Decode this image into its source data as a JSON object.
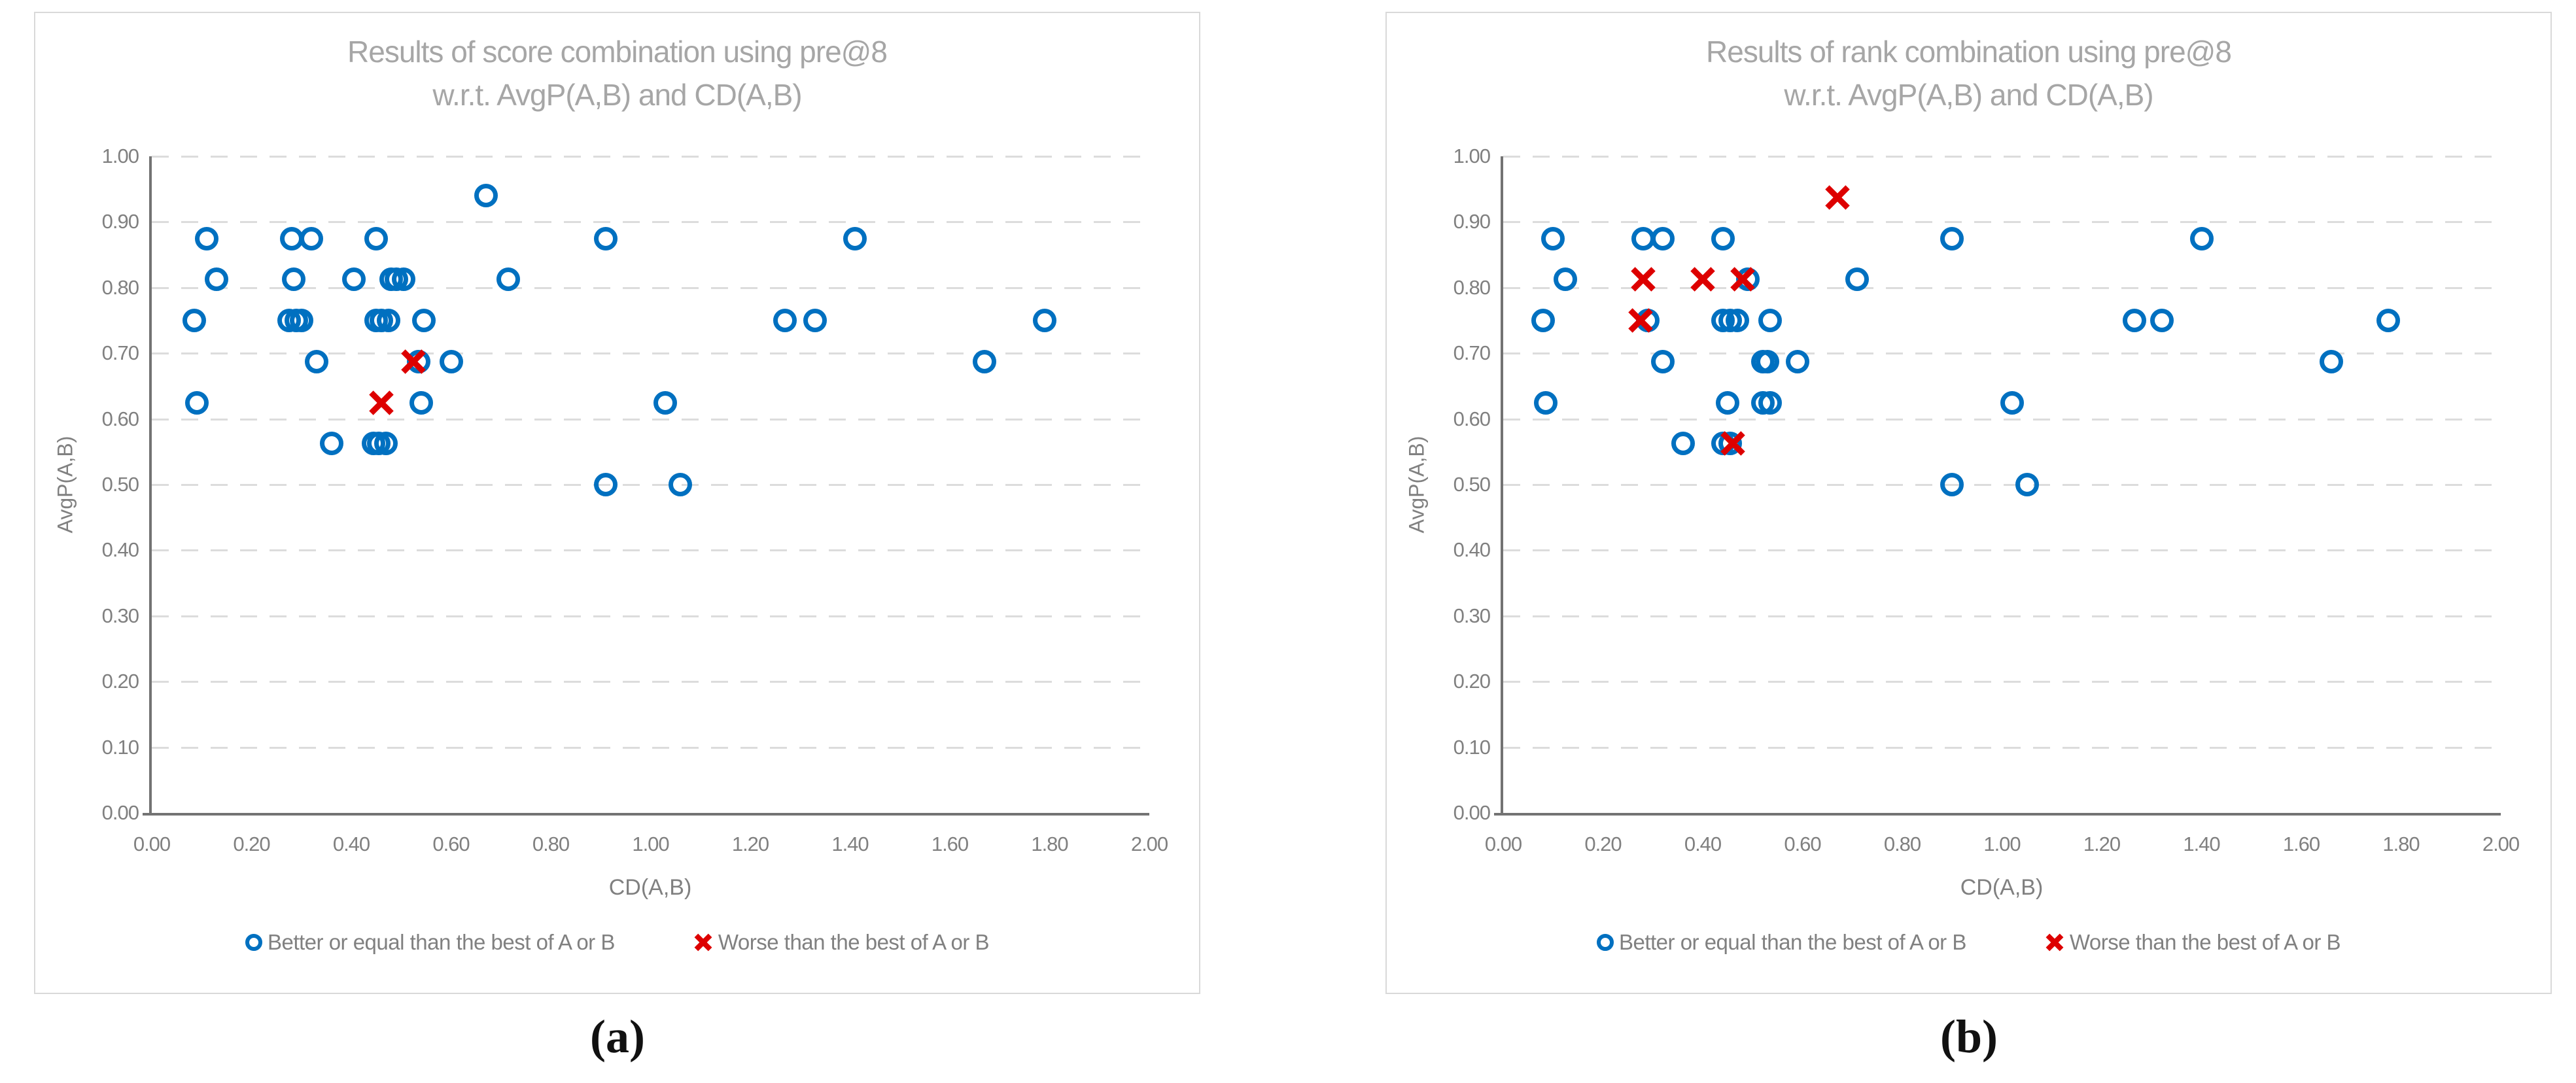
{
  "colors": {
    "circle_series": "#0070C0",
    "x_series": "#DD0000",
    "title_text": "#A6A6A6",
    "axis_text": "#808080",
    "gridline": "#DCDCDC",
    "axis_line": "#737373",
    "panel_border": "#D9D9D9",
    "caption_text": "#111111"
  },
  "captions": {
    "a": "(a)",
    "b": "(b)"
  },
  "charts": [
    {
      "title_line1": "Results of score combination using pre@8",
      "title_line2": "w.r.t. AvgP(A,B) and CD(A,B)",
      "xlabel": "CD(A,B)",
      "ylabel": "AvgP(A,B)",
      "legend": [
        {
          "marker": "circle",
          "label": "Better or equal than the best of A or B"
        },
        {
          "marker": "x",
          "label": "Worse than the best of A or B"
        }
      ],
      "chart_data": {
        "type": "scatter",
        "title": "Results of score combination using pre@8 w.r.t. AvgP(A,B) and CD(A,B)",
        "xlabel": "CD(A,B)",
        "ylabel": "AvgP(A,B)",
        "xlim": [
          0,
          2
        ],
        "ylim": [
          0,
          1
        ],
        "grid": "horizontal-dashed",
        "legend_position": "bottom",
        "x_ticks": [
          {
            "label": "0.00",
            "value": 0
          },
          {
            "label": "0.20",
            "value": 0.2
          },
          {
            "label": "0.40",
            "value": 0.4
          },
          {
            "label": "0.60",
            "value": 0.6
          },
          {
            "label": "0.80",
            "value": 0.8
          },
          {
            "label": "1.00",
            "value": 1.0
          },
          {
            "label": "1.20",
            "value": 1.2
          },
          {
            "label": "1.40",
            "value": 1.4
          },
          {
            "label": "1.60",
            "value": 1.6
          },
          {
            "label": "1.80",
            "value": 1.8
          },
          {
            "label": "2.00",
            "value": 2.0
          }
        ],
        "y_ticks": [
          {
            "label": "0.00",
            "value": 0
          },
          {
            "label": "0.10",
            "value": 0.1
          },
          {
            "label": "0.20",
            "value": 0.2
          },
          {
            "label": "0.30",
            "value": 0.3
          },
          {
            "label": "0.40",
            "value": 0.4
          },
          {
            "label": "0.50",
            "value": 0.5
          },
          {
            "label": "0.60",
            "value": 0.6
          },
          {
            "label": "0.70",
            "value": 0.7
          },
          {
            "label": "0.80",
            "value": 0.8
          },
          {
            "label": "0.90",
            "value": 0.9
          },
          {
            "label": "1.00",
            "value": 1.0
          }
        ],
        "series": [
          {
            "name": "Better or equal than the best of A or B",
            "marker": "circle",
            "color": "#0070C0",
            "points": [
              [
                0.67,
                0.94
              ],
              [
                0.11,
                0.875
              ],
              [
                0.28,
                0.875
              ],
              [
                0.32,
                0.875
              ],
              [
                0.45,
                0.875
              ],
              [
                0.91,
                0.875
              ],
              [
                1.41,
                0.875
              ],
              [
                0.13,
                0.8125
              ],
              [
                0.285,
                0.8125
              ],
              [
                0.405,
                0.8125
              ],
              [
                0.48,
                0.8125
              ],
              [
                0.49,
                0.8125
              ],
              [
                0.505,
                0.8125
              ],
              [
                0.715,
                0.8125
              ],
              [
                0.085,
                0.75
              ],
              [
                0.275,
                0.75
              ],
              [
                0.29,
                0.75
              ],
              [
                0.3,
                0.75
              ],
              [
                0.45,
                0.75
              ],
              [
                0.46,
                0.75
              ],
              [
                0.475,
                0.75
              ],
              [
                0.545,
                0.75
              ],
              [
                1.27,
                0.75
              ],
              [
                1.33,
                0.75
              ],
              [
                1.79,
                0.75
              ],
              [
                0.33,
                0.6875
              ],
              [
                0.535,
                0.6875
              ],
              [
                0.6,
                0.6875
              ],
              [
                1.67,
                0.6875
              ],
              [
                0.09,
                0.625
              ],
              [
                0.54,
                0.625
              ],
              [
                1.03,
                0.625
              ],
              [
                0.36,
                0.5625
              ],
              [
                0.445,
                0.5625
              ],
              [
                0.455,
                0.5625
              ],
              [
                0.47,
                0.5625
              ],
              [
                0.91,
                0.5
              ],
              [
                1.06,
                0.5
              ]
            ]
          },
          {
            "name": "Worse than the best of A or B",
            "marker": "x",
            "color": "#DD0000",
            "points": [
              [
                0.525,
                0.6875
              ],
              [
                0.46,
                0.625
              ]
            ]
          }
        ]
      }
    },
    {
      "title_line1": "Results of rank combination using pre@8",
      "title_line2": "w.r.t. AvgP(A,B) and CD(A,B)",
      "xlabel": "CD(A,B)",
      "ylabel": "AvgP(A,B)",
      "legend": [
        {
          "marker": "circle",
          "label": "Better or equal than the best of A or B"
        },
        {
          "marker": "x",
          "label": "Worse than the best of A or B"
        }
      ],
      "chart_data": {
        "type": "scatter",
        "title": "Results of rank combination using pre@8 w.r.t. AvgP(A,B) and CD(A,B)",
        "xlabel": "CD(A,B)",
        "ylabel": "AvgP(A,B)",
        "xlim": [
          0,
          2
        ],
        "ylim": [
          0,
          1
        ],
        "grid": "horizontal-dashed",
        "legend_position": "bottom",
        "x_ticks": [
          {
            "label": "0.00",
            "value": 0
          },
          {
            "label": "0.20",
            "value": 0.2
          },
          {
            "label": "0.40",
            "value": 0.4
          },
          {
            "label": "0.60",
            "value": 0.6
          },
          {
            "label": "0.80",
            "value": 0.8
          },
          {
            "label": "1.00",
            "value": 1.0
          },
          {
            "label": "1.20",
            "value": 1.2
          },
          {
            "label": "1.40",
            "value": 1.4
          },
          {
            "label": "1.60",
            "value": 1.6
          },
          {
            "label": "1.80",
            "value": 1.8
          },
          {
            "label": "2.00",
            "value": 2.0
          }
        ],
        "y_ticks": [
          {
            "label": "0.00",
            "value": 0
          },
          {
            "label": "0.10",
            "value": 0.1
          },
          {
            "label": "0.20",
            "value": 0.2
          },
          {
            "label": "0.30",
            "value": 0.3
          },
          {
            "label": "0.40",
            "value": 0.4
          },
          {
            "label": "0.50",
            "value": 0.5
          },
          {
            "label": "0.60",
            "value": 0.6
          },
          {
            "label": "0.70",
            "value": 0.7
          },
          {
            "label": "0.80",
            "value": 0.8
          },
          {
            "label": "0.90",
            "value": 0.9
          },
          {
            "label": "1.00",
            "value": 1.0
          }
        ],
        "series": [
          {
            "name": "Better or equal than the best of A or B",
            "marker": "circle",
            "color": "#0070C0",
            "points": [
              [
                0.1,
                0.875
              ],
              [
                0.28,
                0.875
              ],
              [
                0.32,
                0.875
              ],
              [
                0.44,
                0.875
              ],
              [
                0.9,
                0.875
              ],
              [
                1.4,
                0.875
              ],
              [
                0.125,
                0.8125
              ],
              [
                0.49,
                0.8125
              ],
              [
                0.71,
                0.8125
              ],
              [
                0.08,
                0.75
              ],
              [
                0.29,
                0.75
              ],
              [
                0.44,
                0.75
              ],
              [
                0.455,
                0.75
              ],
              [
                0.47,
                0.75
              ],
              [
                0.535,
                0.75
              ],
              [
                1.265,
                0.75
              ],
              [
                1.32,
                0.75
              ],
              [
                1.775,
                0.75
              ],
              [
                0.32,
                0.6875
              ],
              [
                0.52,
                0.6875
              ],
              [
                0.53,
                0.6875
              ],
              [
                0.59,
                0.6875
              ],
              [
                1.66,
                0.6875
              ],
              [
                0.085,
                0.625
              ],
              [
                0.45,
                0.625
              ],
              [
                0.52,
                0.625
              ],
              [
                0.535,
                0.625
              ],
              [
                1.02,
                0.625
              ],
              [
                0.36,
                0.5625
              ],
              [
                0.44,
                0.5625
              ],
              [
                0.455,
                0.5625
              ],
              [
                0.9,
                0.5
              ],
              [
                1.05,
                0.5
              ]
            ]
          },
          {
            "name": "Worse than the best of A or B",
            "marker": "x",
            "color": "#DD0000",
            "points": [
              [
                0.67,
                0.9375
              ],
              [
                0.28,
                0.8125
              ],
              [
                0.4,
                0.8125
              ],
              [
                0.48,
                0.8125
              ],
              [
                0.275,
                0.75
              ],
              [
                0.46,
                0.5625
              ]
            ]
          }
        ]
      }
    }
  ]
}
